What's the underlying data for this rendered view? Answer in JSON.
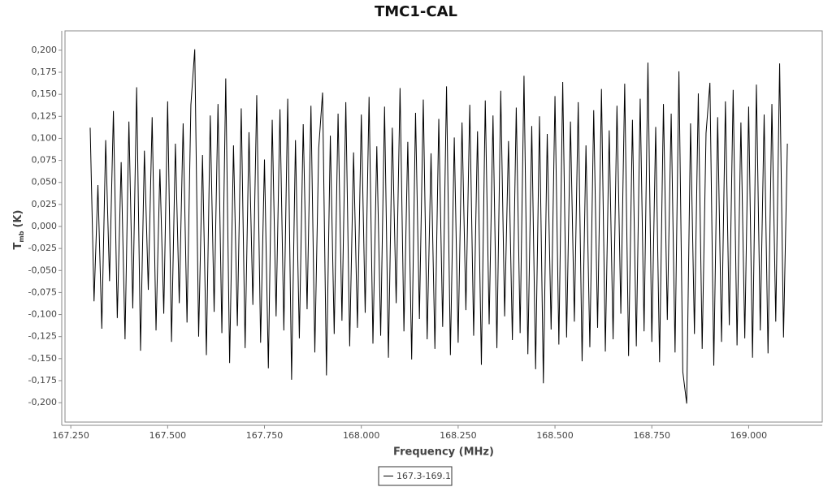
{
  "chart_data": {
    "type": "line",
    "title": "TMC1-CAL",
    "x_label": "Frequency (MHz)",
    "y_label": "T",
    "y_label_sub": "mb",
    "y_label_unit": "(K)",
    "xlim": [
      167.235,
      169.19
    ],
    "ylim": [
      -0.222,
      0.222
    ],
    "xticks": [
      {
        "value": 167.25,
        "label": "167.250"
      },
      {
        "value": 167.5,
        "label": "167.500"
      },
      {
        "value": 167.75,
        "label": "167.750"
      },
      {
        "value": 168,
        "label": "168.000"
      },
      {
        "value": 168.25,
        "label": "168.250"
      },
      {
        "value": 168.5,
        "label": "168.500"
      },
      {
        "value": 168.75,
        "label": "168.750"
      },
      {
        "value": 169,
        "label": "169.000"
      }
    ],
    "yticks": [
      {
        "value": 0.2,
        "label": "0,200"
      },
      {
        "value": 0.175,
        "label": "0,175"
      },
      {
        "value": 0.15,
        "label": "0,150"
      },
      {
        "value": 0.125,
        "label": "0,125"
      },
      {
        "value": 0.1,
        "label": "0,100"
      },
      {
        "value": 0.075,
        "label": "0,075"
      },
      {
        "value": 0.05,
        "label": "0,050"
      },
      {
        "value": 0.025,
        "label": "0,025"
      },
      {
        "value": 0,
        "label": "0,000"
      },
      {
        "value": -0.025,
        "label": "-0,025"
      },
      {
        "value": -0.05,
        "label": "-0,050"
      },
      {
        "value": -0.075,
        "label": "-0,075"
      },
      {
        "value": -0.1,
        "label": "-0,100"
      },
      {
        "value": -0.125,
        "label": "-0,125"
      },
      {
        "value": -0.15,
        "label": "-0,150"
      },
      {
        "value": -0.175,
        "label": "-0,175"
      },
      {
        "value": -0.2,
        "label": "-0,200"
      }
    ],
    "series": [
      {
        "name": "167.3-169.1",
        "color": "#000000",
        "x": [
          167.3,
          167.31,
          167.32,
          167.33,
          167.34,
          167.35,
          167.36,
          167.37,
          167.38,
          167.39,
          167.4,
          167.41,
          167.42,
          167.43,
          167.44,
          167.45,
          167.46,
          167.47,
          167.48,
          167.49,
          167.5,
          167.51,
          167.52,
          167.53,
          167.54,
          167.55,
          167.56,
          167.57,
          167.58,
          167.59,
          167.6,
          167.61,
          167.62,
          167.63,
          167.64,
          167.65,
          167.66,
          167.67,
          167.68,
          167.69,
          167.7,
          167.71,
          167.72,
          167.73,
          167.74,
          167.75,
          167.76,
          167.77,
          167.78,
          167.79,
          167.8,
          167.81,
          167.82,
          167.83,
          167.84,
          167.85,
          167.86,
          167.87,
          167.88,
          167.89,
          167.9,
          167.91,
          167.92,
          167.93,
          167.94,
          167.95,
          167.96,
          167.97,
          167.98,
          167.99,
          168.0,
          168.01,
          168.02,
          168.03,
          168.04,
          168.05,
          168.06,
          168.07,
          168.08,
          168.09,
          168.1,
          168.11,
          168.12,
          168.13,
          168.14,
          168.15,
          168.16,
          168.17,
          168.18,
          168.19,
          168.2,
          168.21,
          168.22,
          168.23,
          168.24,
          168.25,
          168.26,
          168.27,
          168.28,
          168.29,
          168.3,
          168.31,
          168.32,
          168.33,
          168.34,
          168.35,
          168.36,
          168.37,
          168.38,
          168.39,
          168.4,
          168.41,
          168.42,
          168.43,
          168.44,
          168.45,
          168.46,
          168.47,
          168.48,
          168.49,
          168.5,
          168.51,
          168.52,
          168.53,
          168.54,
          168.55,
          168.56,
          168.57,
          168.58,
          168.59,
          168.6,
          168.61,
          168.62,
          168.63,
          168.64,
          168.65,
          168.66,
          168.67,
          168.68,
          168.69,
          168.7,
          168.71,
          168.72,
          168.73,
          168.74,
          168.75,
          168.76,
          168.77,
          168.78,
          168.79,
          168.8,
          168.81,
          168.82,
          168.83,
          168.84,
          168.85,
          168.86,
          168.87,
          168.88,
          168.89,
          168.9,
          168.91,
          168.92,
          168.93,
          168.94,
          168.95,
          168.96,
          168.97,
          168.98,
          168.99,
          169.0,
          169.01,
          169.02,
          169.03,
          169.04,
          169.05,
          169.06,
          169.07,
          169.08,
          169.09,
          169.1
        ],
        "values": [
          0.112,
          -0.085,
          0.047,
          -0.116,
          0.098,
          -0.062,
          0.131,
          -0.104,
          0.073,
          -0.128,
          0.119,
          -0.093,
          0.158,
          -0.141,
          0.086,
          -0.072,
          0.124,
          -0.118,
          0.065,
          -0.099,
          0.142,
          -0.131,
          0.094,
          -0.087,
          0.117,
          -0.109,
          0.138,
          0.201,
          -0.125,
          0.081,
          -0.146,
          0.126,
          -0.097,
          0.139,
          -0.121,
          0.168,
          -0.155,
          0.092,
          -0.113,
          0.134,
          -0.138,
          0.107,
          -0.089,
          0.149,
          -0.132,
          0.076,
          -0.161,
          0.121,
          -0.102,
          0.133,
          -0.118,
          0.145,
          -0.174,
          0.098,
          -0.127,
          0.116,
          -0.094,
          0.137,
          -0.143,
          0.089,
          0.152,
          -0.169,
          0.103,
          -0.122,
          0.128,
          -0.107,
          0.141,
          -0.136,
          0.084,
          -0.115,
          0.127,
          -0.098,
          0.147,
          -0.133,
          0.091,
          -0.124,
          0.136,
          -0.149,
          0.112,
          -0.087,
          0.157,
          -0.119,
          0.096,
          -0.151,
          0.129,
          -0.105,
          0.144,
          -0.128,
          0.083,
          -0.139,
          0.122,
          -0.114,
          0.159,
          -0.146,
          0.101,
          -0.132,
          0.118,
          -0.095,
          0.138,
          -0.124,
          0.108,
          -0.157,
          0.143,
          -0.111,
          0.126,
          -0.138,
          0.154,
          -0.102,
          0.097,
          -0.129,
          0.135,
          -0.121,
          0.171,
          -0.145,
          0.114,
          -0.162,
          0.125,
          -0.178,
          0.105,
          -0.117,
          0.148,
          -0.134,
          0.164,
          -0.126,
          0.119,
          -0.108,
          0.141,
          -0.153,
          0.092,
          -0.137,
          0.132,
          -0.115,
          0.156,
          -0.142,
          0.109,
          -0.128,
          0.137,
          -0.099,
          0.162,
          -0.147,
          0.121,
          -0.136,
          0.145,
          -0.119,
          0.186,
          -0.131,
          0.113,
          -0.154,
          0.139,
          -0.106,
          0.128,
          -0.143,
          0.176,
          -0.165,
          -0.201,
          0.117,
          -0.122,
          0.151,
          -0.139,
          0.106,
          0.163,
          -0.158,
          0.124,
          -0.131,
          0.142,
          -0.112,
          0.155,
          -0.135,
          0.118,
          -0.127,
          0.136,
          -0.149,
          0.161,
          -0.118,
          0.127,
          -0.144,
          0.139,
          -0.108,
          0.185,
          -0.126,
          0.094
        ]
      }
    ]
  }
}
